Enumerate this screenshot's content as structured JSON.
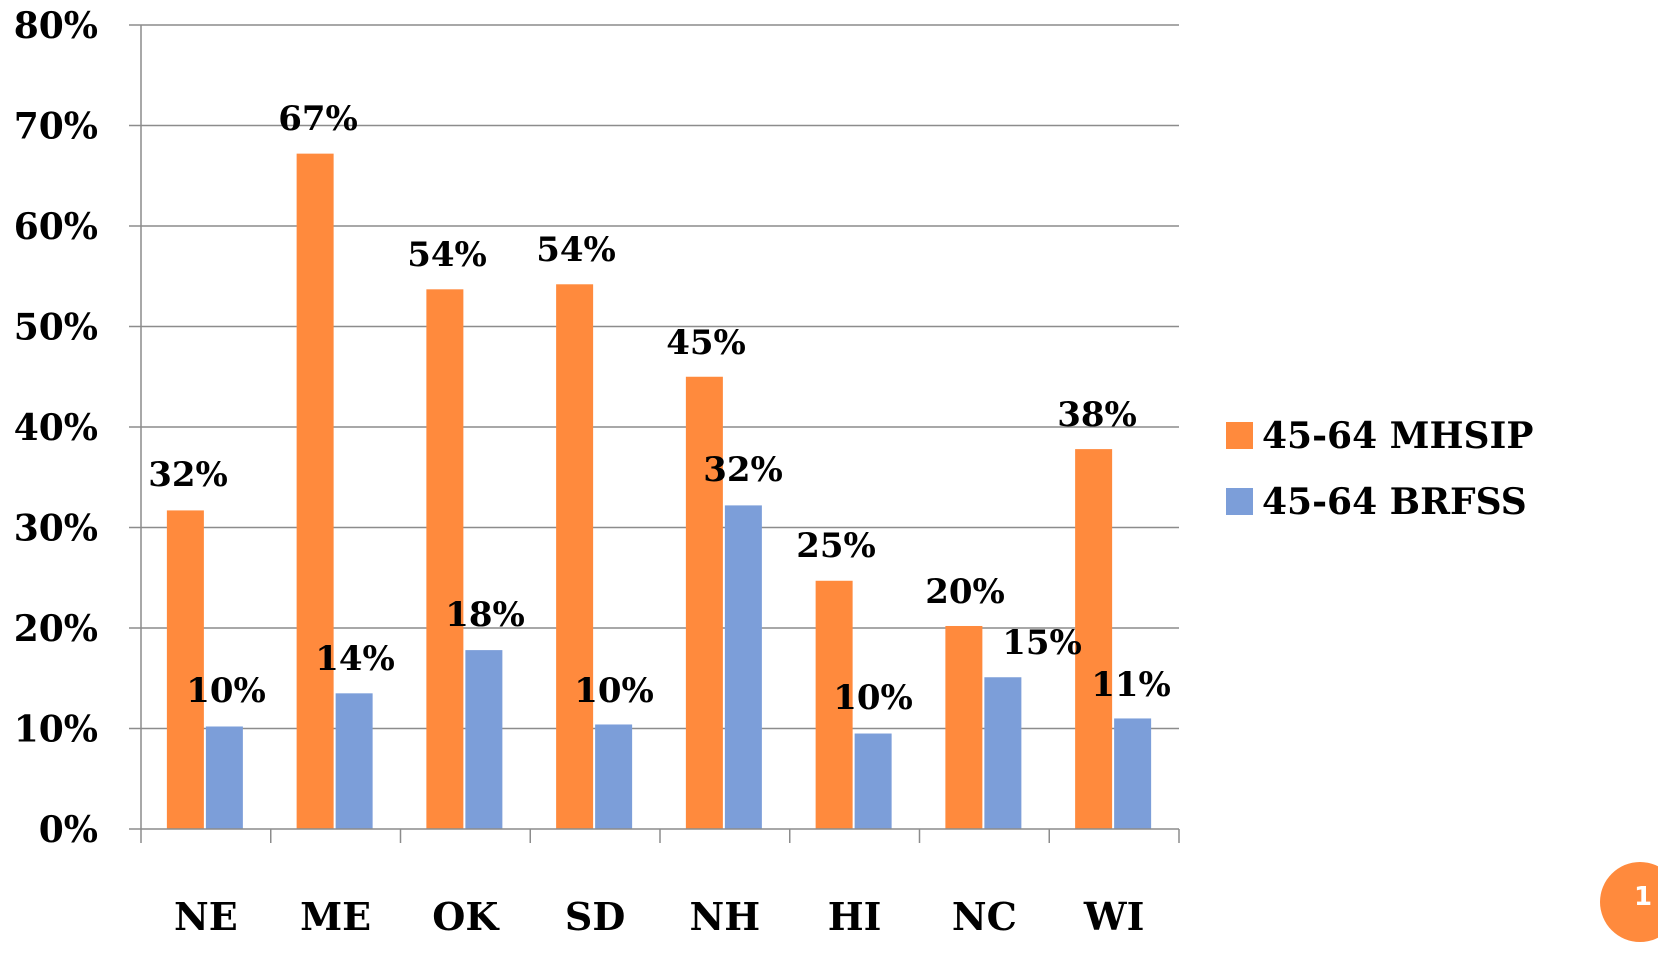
{
  "chart_data": {
    "type": "bar",
    "categories": [
      "NE",
      "ME",
      "OK",
      "SD",
      "NH",
      "HI",
      "NC",
      "WI"
    ],
    "series": [
      {
        "name": "45-64 MHSIP",
        "color": "#FF8A3D",
        "values": [
          31.7,
          67.2,
          53.7,
          54.2,
          45.0,
          24.7,
          20.2,
          37.8
        ],
        "labels": [
          "32%",
          "67%",
          "54%",
          "54%",
          "45%",
          "25%",
          "20%",
          "38%"
        ]
      },
      {
        "name": "45-64 BRFSS",
        "color": "#7C9ED9",
        "values": [
          10.2,
          13.5,
          17.8,
          10.4,
          32.2,
          9.5,
          15.1,
          11.0
        ],
        "labels": [
          "10%",
          "14%",
          "18%",
          "10%",
          "32%",
          "10%",
          "15%",
          "11%"
        ]
      }
    ],
    "ylim": [
      0,
      80
    ],
    "yticks": [
      0,
      10,
      20,
      30,
      40,
      50,
      60,
      70,
      80
    ],
    "ytick_labels": [
      "0%",
      "10%",
      "20%",
      "30%",
      "40%",
      "50%",
      "60%",
      "70%",
      "80%"
    ],
    "grid": true,
    "legend_position": "right"
  },
  "page_badge": {
    "text": "1",
    "color": "#FF8A3D"
  }
}
